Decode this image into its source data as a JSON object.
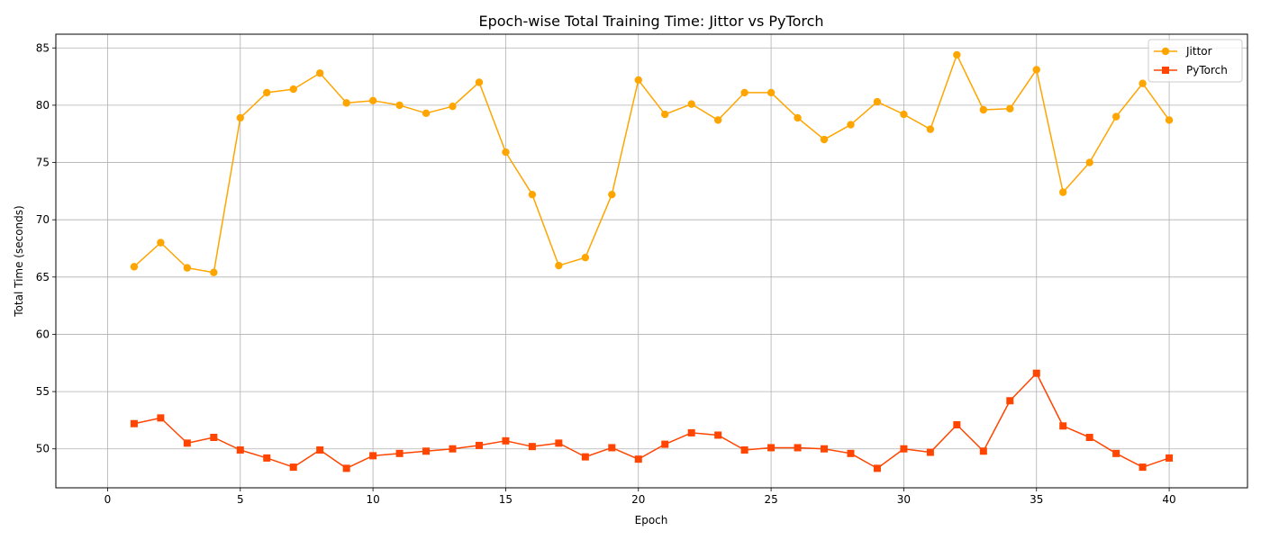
{
  "chart_data": {
    "type": "line",
    "title": "Epoch-wise Total Training Time: Jittor vs PyTorch",
    "xlabel": "Epoch",
    "ylabel": "Total Time (seconds)",
    "xlim": [
      -1.95,
      42.95
    ],
    "ylim": [
      46.6,
      86.2
    ],
    "xticks": [
      0,
      5,
      10,
      15,
      20,
      25,
      30,
      35,
      40
    ],
    "yticks": [
      50,
      55,
      60,
      65,
      70,
      75,
      80,
      85
    ],
    "grid": true,
    "legend_position": "top-right",
    "x": [
      1,
      2,
      3,
      4,
      5,
      6,
      7,
      8,
      9,
      10,
      11,
      12,
      13,
      14,
      15,
      16,
      17,
      18,
      19,
      20,
      21,
      22,
      23,
      24,
      25,
      26,
      27,
      28,
      29,
      30,
      31,
      32,
      33,
      34,
      35,
      36,
      37,
      38,
      39,
      40
    ],
    "series": [
      {
        "name": "Jittor",
        "color": "#FFA500",
        "marker": "circle",
        "values": [
          65.9,
          68.0,
          65.8,
          65.4,
          78.9,
          81.1,
          81.4,
          82.8,
          80.2,
          80.4,
          80.0,
          79.3,
          79.9,
          82.0,
          75.9,
          72.2,
          66.0,
          66.7,
          72.2,
          82.2,
          79.2,
          80.1,
          78.7,
          81.1,
          81.1,
          78.9,
          77.0,
          78.3,
          80.3,
          79.2,
          77.9,
          84.4,
          79.6,
          79.7,
          83.1,
          72.4,
          75.0,
          79.0,
          81.9,
          78.7
        ]
      },
      {
        "name": "PyTorch",
        "color": "#FF4500",
        "marker": "square",
        "values": [
          52.2,
          52.7,
          50.5,
          51.0,
          49.9,
          49.2,
          48.4,
          49.9,
          48.3,
          49.4,
          49.6,
          49.8,
          50.0,
          50.3,
          50.7,
          50.2,
          50.5,
          49.3,
          50.1,
          49.1,
          50.4,
          51.4,
          51.2,
          49.9,
          50.1,
          50.1,
          50.0,
          49.6,
          48.3,
          50.0,
          49.7,
          52.1,
          49.8,
          54.2,
          56.6,
          52.0,
          51.0,
          49.6,
          48.4,
          49.2
        ]
      }
    ]
  }
}
